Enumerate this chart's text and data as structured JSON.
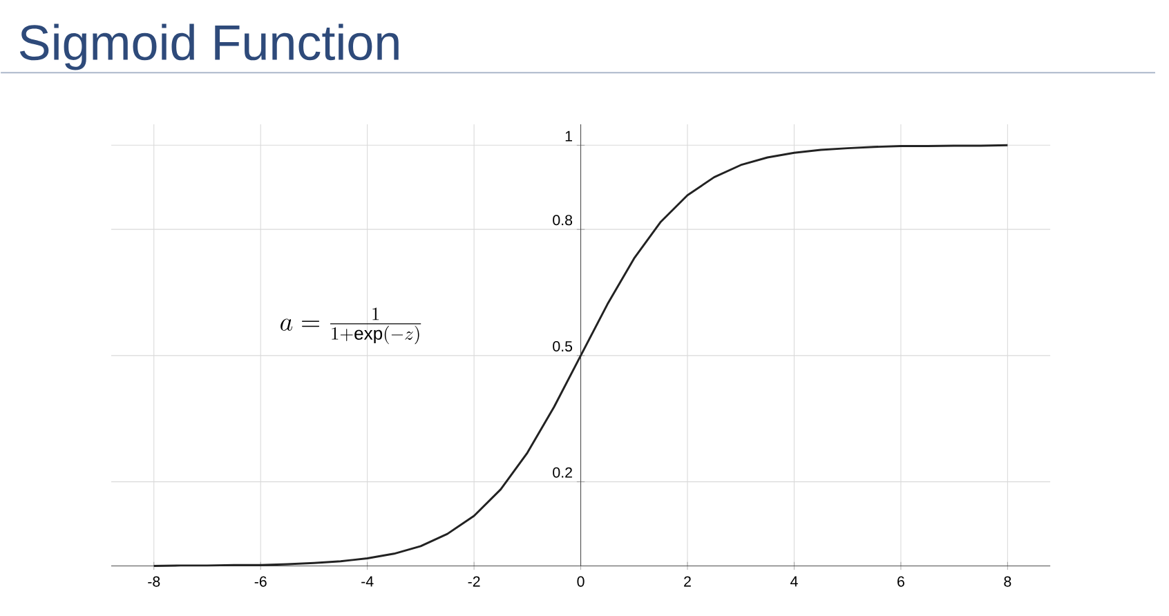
{
  "chart_data": {
    "type": "line",
    "title": "Sigmoid Function",
    "x": [
      -8,
      -7.5,
      -7,
      -6.5,
      -6,
      -5.5,
      -5,
      -4.5,
      -4,
      -3.5,
      -3,
      -2.5,
      -2,
      -1.5,
      -1,
      -0.5,
      0,
      0.5,
      1,
      1.5,
      2,
      2.5,
      3,
      3.5,
      4,
      4.5,
      5,
      5.5,
      6,
      6.5,
      7,
      7.5,
      8
    ],
    "series": [
      {
        "color": "#222222",
        "values": [
          0.0,
          0.001,
          0.001,
          0.002,
          0.002,
          0.004,
          0.007,
          0.011,
          0.018,
          0.029,
          0.047,
          0.076,
          0.119,
          0.182,
          0.269,
          0.378,
          0.5,
          0.622,
          0.731,
          0.818,
          0.881,
          0.924,
          0.953,
          0.971,
          0.982,
          0.989,
          0.993,
          0.996,
          0.998,
          0.998,
          0.999,
          0.999,
          1.0
        ]
      }
    ],
    "xlim": [
      -8.8,
      8.8
    ],
    "ylim": [
      0,
      1.05
    ],
    "xticks": [
      -8,
      -6,
      -4,
      -2,
      0,
      2,
      4,
      6,
      8
    ],
    "yticks": [
      0.2,
      0.5,
      0.8,
      1
    ],
    "grid": true,
    "marker": "none",
    "line_style": "solid",
    "annotations": [
      "a = \\frac{1}{1+\\exp(-z)}"
    ]
  }
}
